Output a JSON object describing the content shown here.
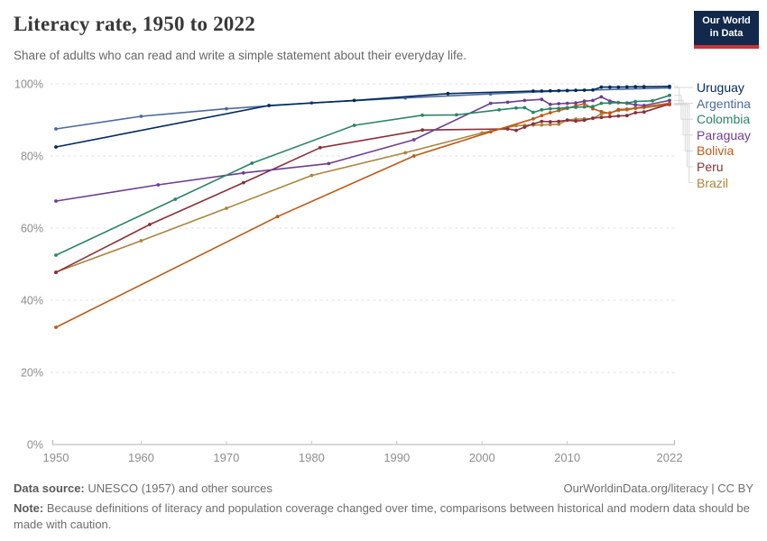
{
  "header": {
    "title": "Literacy rate, 1950 to 2022",
    "subtitle": "Share of adults who can read and write a simple statement about their everyday life.",
    "logo": {
      "line1": "Our World",
      "line2": "in Data",
      "bg_color": "#12294B",
      "accent_color": "#CB3335"
    }
  },
  "chart_data": {
    "type": "line",
    "title": "Literacy rate, 1950 to 2022",
    "xlabel": "",
    "ylabel": "",
    "xlim": [
      1950,
      2022
    ],
    "ylim": [
      0,
      100
    ],
    "x_ticks": [
      1950,
      1960,
      1970,
      1980,
      1990,
      2000,
      2010,
      2022
    ],
    "y_ticks": [
      0,
      20,
      40,
      60,
      80,
      100
    ],
    "y_tick_suffix": "%",
    "grid": "horizontal-dashed",
    "legend_position": "right",
    "grid_color": "#dcdcdc",
    "axis_color": "#b0b0b0",
    "tick_label_color": "#8e8e8e",
    "connector_color": "#d8d8d8",
    "series": [
      {
        "name": "Uruguay",
        "color": "#00295B",
        "points": [
          [
            1950,
            82.5
          ],
          [
            1975,
            94.0
          ],
          [
            1985,
            95.4
          ],
          [
            1996,
            97.3
          ],
          [
            2006,
            98.0
          ],
          [
            2007,
            98.0
          ],
          [
            2008,
            98.05
          ],
          [
            2009,
            98.1
          ],
          [
            2010,
            98.15
          ],
          [
            2011,
            98.2
          ],
          [
            2012,
            98.25
          ],
          [
            2013,
            98.3
          ],
          [
            2014,
            99.1
          ],
          [
            2015,
            99.1
          ],
          [
            2016,
            99.1
          ],
          [
            2017,
            99.15
          ],
          [
            2018,
            99.2
          ],
          [
            2019,
            99.2
          ],
          [
            2022,
            99.3
          ]
        ]
      },
      {
        "name": "Argentina",
        "color": "#4C6A9C",
        "points": [
          [
            1950,
            87.5
          ],
          [
            1960,
            91.0
          ],
          [
            1970,
            93.1
          ],
          [
            1980,
            94.7
          ],
          [
            1991,
            96.1
          ],
          [
            2001,
            97.2
          ],
          [
            2010,
            98.1
          ],
          [
            2022,
            98.9
          ]
        ]
      },
      {
        "name": "Colombia",
        "color": "#2C8465",
        "points": [
          [
            1950,
            52.5
          ],
          [
            1964,
            68.0
          ],
          [
            1973,
            78.0
          ],
          [
            1985,
            88.5
          ],
          [
            1993,
            91.3
          ],
          [
            1997,
            91.4
          ],
          [
            2002,
            92.8
          ],
          [
            2004,
            93.3
          ],
          [
            2005,
            93.4
          ],
          [
            2006,
            92.1
          ],
          [
            2007,
            92.8
          ],
          [
            2008,
            93.1
          ],
          [
            2009,
            93.2
          ],
          [
            2010,
            93.4
          ],
          [
            2011,
            93.5
          ],
          [
            2012,
            93.6
          ],
          [
            2013,
            93.7
          ],
          [
            2014,
            94.6
          ],
          [
            2015,
            94.7
          ],
          [
            2016,
            94.8
          ],
          [
            2017,
            94.7
          ],
          [
            2018,
            95.1
          ],
          [
            2020,
            95.3
          ],
          [
            2022,
            96.8
          ]
        ]
      },
      {
        "name": "Paraguay",
        "color": "#6D3E91",
        "points": [
          [
            1950,
            67.5
          ],
          [
            1962,
            72.0
          ],
          [
            1972,
            75.3
          ],
          [
            1982,
            77.9
          ],
          [
            1992,
            84.5
          ],
          [
            2001,
            94.6
          ],
          [
            2003,
            94.9
          ],
          [
            2005,
            95.4
          ],
          [
            2007,
            95.7
          ],
          [
            2008,
            94.3
          ],
          [
            2009,
            94.5
          ],
          [
            2010,
            94.6
          ],
          [
            2011,
            94.7
          ],
          [
            2012,
            95.2
          ],
          [
            2013,
            95.4
          ],
          [
            2014,
            96.4
          ],
          [
            2015,
            95.2
          ],
          [
            2016,
            94.8
          ],
          [
            2017,
            94.6
          ],
          [
            2018,
            94.2
          ],
          [
            2019,
            94.0
          ],
          [
            2022,
            95.4
          ]
        ]
      },
      {
        "name": "Bolivia",
        "color": "#BE5915",
        "points": [
          [
            1950,
            32.5
          ],
          [
            1976,
            63.2
          ],
          [
            1992,
            80.0
          ],
          [
            2001,
            86.7
          ],
          [
            2006,
            90.3
          ],
          [
            2007,
            91.2
          ],
          [
            2008,
            92.0
          ],
          [
            2009,
            92.6
          ],
          [
            2010,
            93.2
          ],
          [
            2011,
            93.9
          ],
          [
            2012,
            94.5
          ],
          [
            2013,
            93.1
          ],
          [
            2014,
            92.3
          ],
          [
            2015,
            91.8
          ],
          [
            2016,
            92.9
          ],
          [
            2017,
            93.0
          ],
          [
            2018,
            93.3
          ],
          [
            2019,
            93.6
          ],
          [
            2022,
            94.6
          ]
        ]
      },
      {
        "name": "Peru",
        "color": "#883039",
        "points": [
          [
            1950,
            47.7
          ],
          [
            1961,
            61.0
          ],
          [
            1972,
            72.6
          ],
          [
            1981,
            82.3
          ],
          [
            1993,
            87.2
          ],
          [
            2003,
            87.5
          ],
          [
            2004,
            87.1
          ],
          [
            2005,
            88.0
          ],
          [
            2006,
            88.9
          ],
          [
            2007,
            89.6
          ],
          [
            2008,
            89.5
          ],
          [
            2009,
            89.6
          ],
          [
            2010,
            89.9
          ],
          [
            2011,
            89.7
          ],
          [
            2012,
            89.9
          ],
          [
            2013,
            90.5
          ],
          [
            2014,
            90.7
          ],
          [
            2015,
            90.9
          ],
          [
            2016,
            91.1
          ],
          [
            2017,
            91.2
          ],
          [
            2018,
            92.0
          ],
          [
            2019,
            92.2
          ],
          [
            2022,
            94.4
          ]
        ]
      },
      {
        "name": "Brazil",
        "color": "#A9853F",
        "points": [
          [
            1950,
            47.8
          ],
          [
            1960,
            56.5
          ],
          [
            1970,
            65.5
          ],
          [
            1980,
            74.6
          ],
          [
            1991,
            80.9
          ],
          [
            2000,
            86.4
          ],
          [
            2004,
            88.4
          ],
          [
            2005,
            88.5
          ],
          [
            2006,
            88.6
          ],
          [
            2007,
            88.6
          ],
          [
            2008,
            88.7
          ],
          [
            2009,
            88.8
          ],
          [
            2010,
            90.0
          ],
          [
            2011,
            90.2
          ],
          [
            2012,
            90.3
          ],
          [
            2013,
            90.4
          ],
          [
            2014,
            91.7
          ],
          [
            2015,
            92.0
          ],
          [
            2016,
            92.6
          ],
          [
            2017,
            92.8
          ],
          [
            2018,
            93.2
          ],
          [
            2019,
            93.4
          ],
          [
            2022,
            94.2
          ]
        ]
      }
    ]
  },
  "footer": {
    "data_source_label": "Data source:",
    "data_source_text": " UNESCO (1957) and other sources",
    "link": "OurWorldinData.org/literacy | CC BY",
    "note_label": "Note:",
    "note_text": " Because definitions of literacy and population coverage changed over time, comparisons between historical and modern data should be made with caution."
  }
}
